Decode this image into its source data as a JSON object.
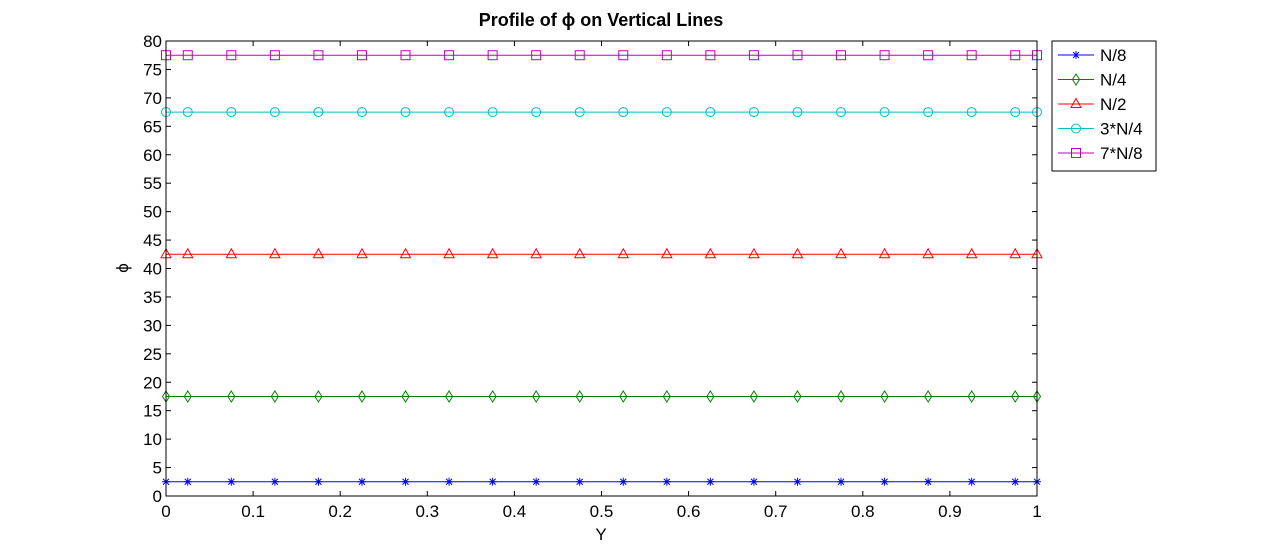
{
  "chart_data": {
    "type": "line",
    "title": "Profile of ϕ on Vertical Lines",
    "xlabel": "Y",
    "ylabel": "ϕ",
    "xlim": [
      0,
      1
    ],
    "ylim": [
      0,
      80
    ],
    "xticks": [
      "0",
      "0.1",
      "0.2",
      "0.3",
      "0.4",
      "0.5",
      "0.6",
      "0.7",
      "0.8",
      "0.9",
      "1"
    ],
    "yticks": [
      "0",
      "5",
      "10",
      "15",
      "20",
      "25",
      "30",
      "35",
      "40",
      "45",
      "50",
      "55",
      "60",
      "65",
      "70",
      "75",
      "80"
    ],
    "grid": false,
    "legend_position": "outside-top-right",
    "x": [
      0,
      0.025,
      0.075,
      0.125,
      0.175,
      0.225,
      0.275,
      0.325,
      0.375,
      0.425,
      0.475,
      0.525,
      0.575,
      0.625,
      0.675,
      0.725,
      0.775,
      0.825,
      0.875,
      0.925,
      0.975,
      1
    ],
    "series": [
      {
        "name": "N/8",
        "color": "#0000ff",
        "marker": "star",
        "values": [
          2.5,
          2.5,
          2.5,
          2.5,
          2.5,
          2.5,
          2.5,
          2.5,
          2.5,
          2.5,
          2.5,
          2.5,
          2.5,
          2.5,
          2.5,
          2.5,
          2.5,
          2.5,
          2.5,
          2.5,
          2.5,
          2.5
        ]
      },
      {
        "name": "N/4",
        "color": "#008000",
        "marker": "diamond",
        "values": [
          17.5,
          17.5,
          17.5,
          17.5,
          17.5,
          17.5,
          17.5,
          17.5,
          17.5,
          17.5,
          17.5,
          17.5,
          17.5,
          17.5,
          17.5,
          17.5,
          17.5,
          17.5,
          17.5,
          17.5,
          17.5,
          17.5
        ]
      },
      {
        "name": "N/2",
        "color": "#ff0000",
        "marker": "triangle",
        "values": [
          42.5,
          42.5,
          42.5,
          42.5,
          42.5,
          42.5,
          42.5,
          42.5,
          42.5,
          42.5,
          42.5,
          42.5,
          42.5,
          42.5,
          42.5,
          42.5,
          42.5,
          42.5,
          42.5,
          42.5,
          42.5,
          42.5
        ]
      },
      {
        "name": "3*N/4",
        "color": "#00bfbf",
        "marker": "circle",
        "values": [
          67.5,
          67.5,
          67.5,
          67.5,
          67.5,
          67.5,
          67.5,
          67.5,
          67.5,
          67.5,
          67.5,
          67.5,
          67.5,
          67.5,
          67.5,
          67.5,
          67.5,
          67.5,
          67.5,
          67.5,
          67.5,
          67.5
        ]
      },
      {
        "name": "7*N/8",
        "color": "#bf00bf",
        "marker": "square",
        "values": [
          77.5,
          77.5,
          77.5,
          77.5,
          77.5,
          77.5,
          77.5,
          77.5,
          77.5,
          77.5,
          77.5,
          77.5,
          77.5,
          77.5,
          77.5,
          77.5,
          77.5,
          77.5,
          77.5,
          77.5,
          77.5,
          77.5
        ]
      }
    ]
  }
}
